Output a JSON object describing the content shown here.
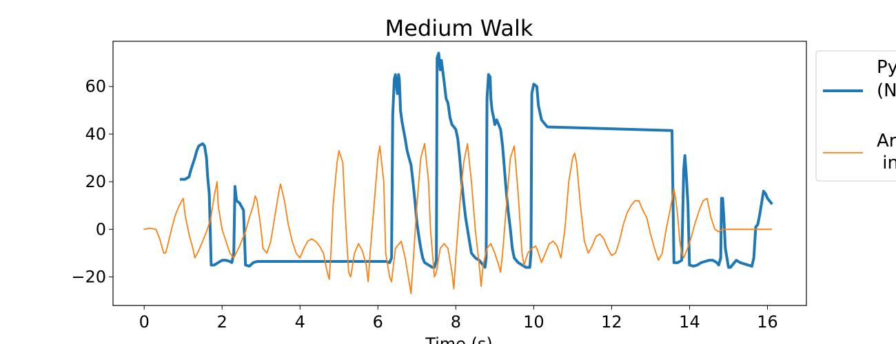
{
  "chart_data": {
    "type": "line",
    "title": "Medium Walk",
    "xlabel": "Time (s)",
    "ylabel": "",
    "xlim": [
      -0.8,
      17.0
    ],
    "ylim": [
      -32,
      79
    ],
    "xticks": [
      0,
      2,
      4,
      6,
      8,
      10,
      12,
      14,
      16
    ],
    "yticks": [
      -20,
      0,
      20,
      40,
      60
    ],
    "ytick_labels": [
      "−20",
      "0",
      "20",
      "40",
      "60"
    ],
    "grid": false,
    "legend": {
      "placement": "outside-right",
      "entries": [
        {
          "lines": [
            "Py",
            "(N"
          ]
        },
        {
          "lines": [
            "Ar",
            " in"
          ]
        }
      ]
    },
    "series": [
      {
        "color": "#1f77b4",
        "linewidth": "thick",
        "points": [
          [
            0.95,
            21
          ],
          [
            1.05,
            21
          ],
          [
            1.15,
            22
          ],
          [
            1.2,
            25
          ],
          [
            1.3,
            30
          ],
          [
            1.35,
            33
          ],
          [
            1.4,
            35
          ],
          [
            1.5,
            36
          ],
          [
            1.55,
            35
          ],
          [
            1.6,
            30
          ],
          [
            1.63,
            22
          ],
          [
            1.67,
            15
          ],
          [
            1.72,
            -15
          ],
          [
            1.8,
            -15
          ],
          [
            1.9,
            -14
          ],
          [
            2.0,
            -13
          ],
          [
            2.1,
            -13
          ],
          [
            2.2,
            -13.5
          ],
          [
            2.25,
            -14
          ],
          [
            2.3,
            -10
          ],
          [
            2.33,
            18
          ],
          [
            2.37,
            12
          ],
          [
            2.45,
            11
          ],
          [
            2.55,
            8
          ],
          [
            2.6,
            -15
          ],
          [
            2.7,
            -15.5
          ],
          [
            2.8,
            -14
          ],
          [
            2.9,
            -13.5
          ],
          [
            4.0,
            -13.5
          ],
          [
            5.0,
            -13.5
          ],
          [
            6.2,
            -13.5
          ],
          [
            6.3,
            -14
          ],
          [
            6.35,
            -12
          ],
          [
            6.38,
            48
          ],
          [
            6.42,
            63
          ],
          [
            6.45,
            65
          ],
          [
            6.5,
            57
          ],
          [
            6.53,
            65
          ],
          [
            6.55,
            63
          ],
          [
            6.58,
            50
          ],
          [
            6.62,
            45
          ],
          [
            6.7,
            38
          ],
          [
            6.75,
            33
          ],
          [
            6.8,
            30
          ],
          [
            6.85,
            27
          ],
          [
            6.9,
            20
          ],
          [
            6.95,
            12
          ],
          [
            7.0,
            3
          ],
          [
            7.05,
            -3
          ],
          [
            7.1,
            -8
          ],
          [
            7.15,
            -12
          ],
          [
            7.2,
            -14
          ],
          [
            7.3,
            -15
          ],
          [
            7.4,
            -16
          ],
          [
            7.45,
            -16
          ],
          [
            7.5,
            -13
          ],
          [
            7.52,
            72
          ],
          [
            7.56,
            74
          ],
          [
            7.6,
            67
          ],
          [
            7.63,
            71
          ],
          [
            7.7,
            62
          ],
          [
            7.75,
            55
          ],
          [
            7.8,
            53
          ],
          [
            7.85,
            47
          ],
          [
            7.9,
            44
          ],
          [
            7.95,
            43
          ],
          [
            8.0,
            42
          ],
          [
            8.05,
            38
          ],
          [
            8.1,
            30
          ],
          [
            8.15,
            20
          ],
          [
            8.2,
            12
          ],
          [
            8.25,
            5
          ],
          [
            8.3,
            0
          ],
          [
            8.35,
            -5
          ],
          [
            8.4,
            -10
          ],
          [
            8.5,
            -12
          ],
          [
            8.6,
            -13
          ],
          [
            8.7,
            -15
          ],
          [
            8.75,
            -16
          ],
          [
            8.78,
            -12
          ],
          [
            8.8,
            55
          ],
          [
            8.84,
            65
          ],
          [
            8.88,
            64
          ],
          [
            8.9,
            55
          ],
          [
            8.93,
            50
          ],
          [
            8.97,
            47
          ],
          [
            9.0,
            44
          ],
          [
            9.05,
            46
          ],
          [
            9.1,
            44
          ],
          [
            9.15,
            42
          ],
          [
            9.2,
            35
          ],
          [
            9.25,
            25
          ],
          [
            9.3,
            15
          ],
          [
            9.35,
            7
          ],
          [
            9.4,
            0
          ],
          [
            9.45,
            -8
          ],
          [
            9.5,
            -12
          ],
          [
            9.6,
            -14
          ],
          [
            9.7,
            -15
          ],
          [
            9.8,
            -16
          ],
          [
            9.9,
            -16
          ],
          [
            9.93,
            -10
          ],
          [
            9.95,
            57
          ],
          [
            10.0,
            61
          ],
          [
            10.08,
            60
          ],
          [
            10.12,
            52
          ],
          [
            10.2,
            46
          ],
          [
            10.3,
            44
          ],
          [
            10.35,
            43
          ],
          [
            13.55,
            41.5
          ],
          [
            13.6,
            -14
          ],
          [
            13.7,
            -14
          ],
          [
            13.8,
            -13
          ],
          [
            13.85,
            25
          ],
          [
            13.88,
            31
          ],
          [
            13.92,
            22
          ],
          [
            13.96,
            10
          ],
          [
            14.0,
            -15
          ],
          [
            14.1,
            -15.5
          ],
          [
            14.2,
            -15
          ],
          [
            14.3,
            -14
          ],
          [
            14.4,
            -13.5
          ],
          [
            14.5,
            -13
          ],
          [
            14.6,
            -13
          ],
          [
            14.7,
            -14
          ],
          [
            14.75,
            -15
          ],
          [
            14.8,
            -12
          ],
          [
            14.82,
            13
          ],
          [
            14.85,
            13
          ],
          [
            14.88,
            5
          ],
          [
            14.92,
            -8
          ],
          [
            15.0,
            -16
          ],
          [
            15.05,
            -16
          ],
          [
            15.1,
            -15
          ],
          [
            15.2,
            -13
          ],
          [
            15.3,
            -14
          ],
          [
            15.4,
            -14.5
          ],
          [
            15.5,
            -15
          ],
          [
            15.6,
            -15.5
          ],
          [
            15.65,
            -12
          ],
          [
            15.7,
            1
          ],
          [
            15.75,
            2
          ],
          [
            15.8,
            6
          ],
          [
            15.85,
            11
          ],
          [
            15.9,
            16
          ],
          [
            15.95,
            15
          ],
          [
            16.0,
            13
          ],
          [
            16.05,
            12
          ],
          [
            16.1,
            11
          ]
        ]
      },
      {
        "color": "#ff7f0e",
        "linewidth": "thin",
        "points": [
          [
            0.0,
            0
          ],
          [
            0.15,
            0.5
          ],
          [
            0.3,
            0
          ],
          [
            0.4,
            -4
          ],
          [
            0.5,
            -10
          ],
          [
            0.55,
            -10
          ],
          [
            0.6,
            -7
          ],
          [
            0.7,
            0
          ],
          [
            0.8,
            6
          ],
          [
            0.9,
            10
          ],
          [
            1.0,
            13
          ],
          [
            1.05,
            6
          ],
          [
            1.15,
            -2
          ],
          [
            1.25,
            -8
          ],
          [
            1.3,
            -12
          ],
          [
            1.4,
            -9
          ],
          [
            1.5,
            -5
          ],
          [
            1.6,
            -1
          ],
          [
            1.7,
            4
          ],
          [
            1.8,
            14
          ],
          [
            1.87,
            20
          ],
          [
            1.9,
            10
          ],
          [
            2.0,
            0
          ],
          [
            2.1,
            -5
          ],
          [
            2.2,
            -10
          ],
          [
            2.3,
            -12
          ],
          [
            2.45,
            -7
          ],
          [
            2.6,
            -1
          ],
          [
            2.7,
            5
          ],
          [
            2.8,
            10
          ],
          [
            2.85,
            14
          ],
          [
            2.9,
            12
          ],
          [
            3.0,
            0
          ],
          [
            3.05,
            -8
          ],
          [
            3.15,
            -10
          ],
          [
            3.25,
            -5
          ],
          [
            3.35,
            5
          ],
          [
            3.45,
            15
          ],
          [
            3.5,
            19
          ],
          [
            3.6,
            12
          ],
          [
            3.7,
            2
          ],
          [
            3.8,
            -5
          ],
          [
            3.9,
            -10
          ],
          [
            4.0,
            -12
          ],
          [
            4.1,
            -8
          ],
          [
            4.2,
            -5
          ],
          [
            4.3,
            -4
          ],
          [
            4.4,
            -5
          ],
          [
            4.5,
            -7
          ],
          [
            4.6,
            -10
          ],
          [
            4.7,
            -18
          ],
          [
            4.75,
            -21
          ],
          [
            4.8,
            -8
          ],
          [
            4.85,
            10
          ],
          [
            4.95,
            28
          ],
          [
            5.0,
            33
          ],
          [
            5.1,
            28
          ],
          [
            5.15,
            10
          ],
          [
            5.2,
            -5
          ],
          [
            5.25,
            -18
          ],
          [
            5.3,
            -20
          ],
          [
            5.4,
            -10
          ],
          [
            5.5,
            -6
          ],
          [
            5.6,
            -9
          ],
          [
            5.7,
            -15
          ],
          [
            5.75,
            -22
          ],
          [
            5.8,
            -10
          ],
          [
            5.9,
            10
          ],
          [
            6.0,
            30
          ],
          [
            6.05,
            35
          ],
          [
            6.15,
            20
          ],
          [
            6.2,
            -10
          ],
          [
            6.3,
            -20
          ],
          [
            6.35,
            -22
          ],
          [
            6.45,
            -8
          ],
          [
            6.6,
            -5
          ],
          [
            6.7,
            -12
          ],
          [
            6.8,
            -22
          ],
          [
            6.85,
            -27
          ],
          [
            6.9,
            -15
          ],
          [
            7.0,
            10
          ],
          [
            7.1,
            30
          ],
          [
            7.2,
            36
          ],
          [
            7.3,
            20
          ],
          [
            7.35,
            0
          ],
          [
            7.45,
            -20
          ],
          [
            7.5,
            -18
          ],
          [
            7.6,
            -8
          ],
          [
            7.7,
            -6
          ],
          [
            7.8,
            -8
          ],
          [
            7.9,
            -18
          ],
          [
            7.95,
            -25
          ],
          [
            8.0,
            -12
          ],
          [
            8.1,
            10
          ],
          [
            8.2,
            28
          ],
          [
            8.3,
            36
          ],
          [
            8.4,
            20
          ],
          [
            8.5,
            0
          ],
          [
            8.6,
            -15
          ],
          [
            8.65,
            -24
          ],
          [
            8.7,
            -15
          ],
          [
            8.8,
            -8
          ],
          [
            8.9,
            -6
          ],
          [
            9.0,
            -10
          ],
          [
            9.1,
            -15
          ],
          [
            9.15,
            -18
          ],
          [
            9.2,
            -10
          ],
          [
            9.3,
            10
          ],
          [
            9.4,
            30
          ],
          [
            9.5,
            35
          ],
          [
            9.6,
            15
          ],
          [
            9.7,
            -10
          ],
          [
            9.75,
            -15
          ],
          [
            9.85,
            -10
          ],
          [
            9.95,
            -8
          ],
          [
            10.05,
            -7
          ],
          [
            10.1,
            -9
          ],
          [
            10.2,
            -14
          ],
          [
            10.3,
            -10
          ],
          [
            10.4,
            -6
          ],
          [
            10.5,
            -5
          ],
          [
            10.6,
            -7
          ],
          [
            10.7,
            -12
          ],
          [
            10.8,
            0
          ],
          [
            10.9,
            20
          ],
          [
            11.0,
            30
          ],
          [
            11.05,
            32
          ],
          [
            11.1,
            28
          ],
          [
            11.2,
            10
          ],
          [
            11.3,
            -5
          ],
          [
            11.4,
            -10
          ],
          [
            11.5,
            -7
          ],
          [
            11.6,
            -3
          ],
          [
            11.7,
            -2
          ],
          [
            11.8,
            -4
          ],
          [
            11.9,
            -8
          ],
          [
            12.0,
            -11
          ],
          [
            12.1,
            -10
          ],
          [
            12.2,
            -5
          ],
          [
            12.3,
            2
          ],
          [
            12.4,
            7
          ],
          [
            12.5,
            10
          ],
          [
            12.6,
            12
          ],
          [
            12.7,
            12
          ],
          [
            12.8,
            8
          ],
          [
            12.9,
            5
          ],
          [
            13.0,
            -2
          ],
          [
            13.1,
            -8
          ],
          [
            13.2,
            -13
          ],
          [
            13.3,
            -10
          ],
          [
            13.4,
            0
          ],
          [
            13.5,
            8
          ],
          [
            13.6,
            17
          ],
          [
            13.65,
            12
          ],
          [
            13.7,
            5
          ],
          [
            13.75,
            -5
          ],
          [
            13.8,
            -10
          ],
          [
            13.85,
            -12
          ],
          [
            13.95,
            -8
          ],
          [
            14.05,
            -3
          ],
          [
            14.15,
            3
          ],
          [
            14.25,
            8
          ],
          [
            14.35,
            12
          ],
          [
            14.45,
            13
          ],
          [
            14.55,
            5
          ],
          [
            14.65,
            0
          ],
          [
            14.75,
            -1
          ],
          [
            14.85,
            0
          ],
          [
            15.0,
            0
          ],
          [
            15.2,
            0
          ],
          [
            15.5,
            0
          ],
          [
            15.8,
            0
          ],
          [
            16.1,
            0
          ]
        ]
      }
    ]
  }
}
